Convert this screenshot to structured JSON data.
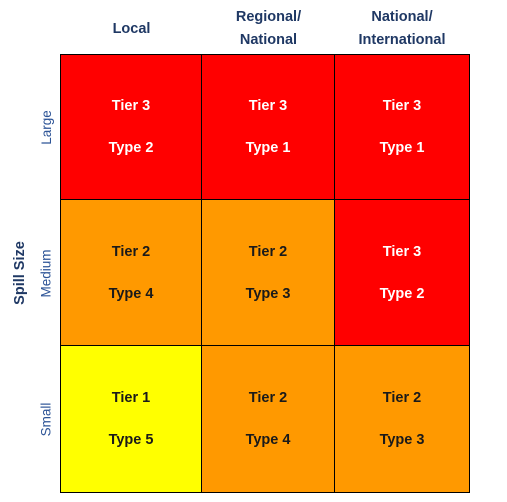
{
  "columns": [
    "Local",
    "Regional/\nNational",
    "National/\nInternational"
  ],
  "axis_title": "Spill Size",
  "rows": [
    {
      "label": "Large",
      "cells": [
        {
          "tier": "Tier 3",
          "type": "Type 2",
          "color": "#ff0000"
        },
        {
          "tier": "Tier 3",
          "type": "Type 1",
          "color": "#ff0000"
        },
        {
          "tier": "Tier 3",
          "type": "Type 1",
          "color": "#ff0000"
        }
      ]
    },
    {
      "label": "Medium",
      "cells": [
        {
          "tier": "Tier 2",
          "type": "Type 4",
          "color": "#ff9900"
        },
        {
          "tier": "Tier 2",
          "type": "Type 3",
          "color": "#ff9900"
        },
        {
          "tier": "Tier 3",
          "type": "Type 2",
          "color": "#ff0000"
        }
      ]
    },
    {
      "label": "Small",
      "cells": [
        {
          "tier": "Tier 1",
          "type": "Type 5",
          "color": "#ffff00"
        },
        {
          "tier": "Tier 2",
          "type": "Type 4",
          "color": "#ff9900"
        },
        {
          "tier": "Tier 2",
          "type": "Type 3",
          "color": "#ff9900"
        }
      ]
    }
  ]
}
